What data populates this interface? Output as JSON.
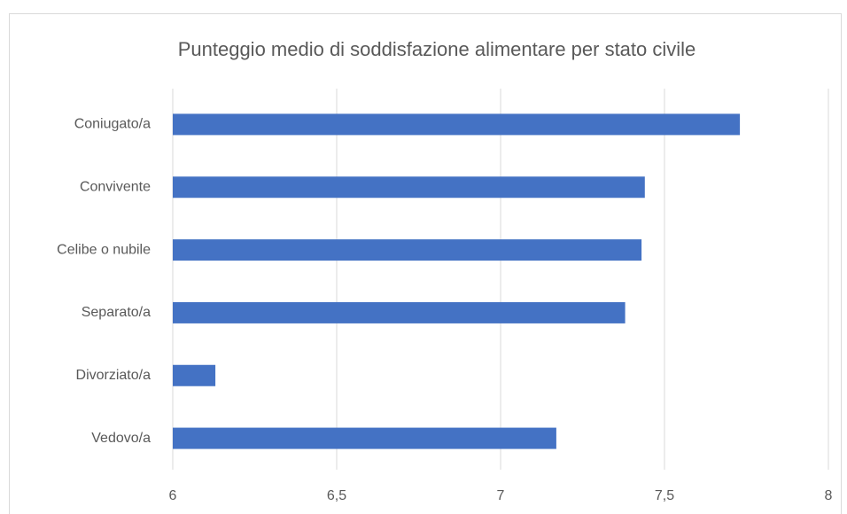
{
  "chart_data": {
    "type": "bar",
    "orientation": "horizontal",
    "title": "Punteggio medio di soddisfazione alimentare per stato civile",
    "categories": [
      "Coniugato/a",
      "Convivente",
      "Celibe o nubile",
      "Separato/a",
      "Divorziato/a",
      "Vedovo/a"
    ],
    "values": [
      7.73,
      7.44,
      7.43,
      7.38,
      6.13,
      7.17
    ],
    "color": "#4472c4",
    "xlim": [
      6,
      8
    ],
    "xticks": [
      6,
      {
        "value": 6.5,
        "label": "6,5"
      },
      7,
      {
        "value": 7.5,
        "label": "7,5"
      },
      8
    ],
    "grid": true
  }
}
